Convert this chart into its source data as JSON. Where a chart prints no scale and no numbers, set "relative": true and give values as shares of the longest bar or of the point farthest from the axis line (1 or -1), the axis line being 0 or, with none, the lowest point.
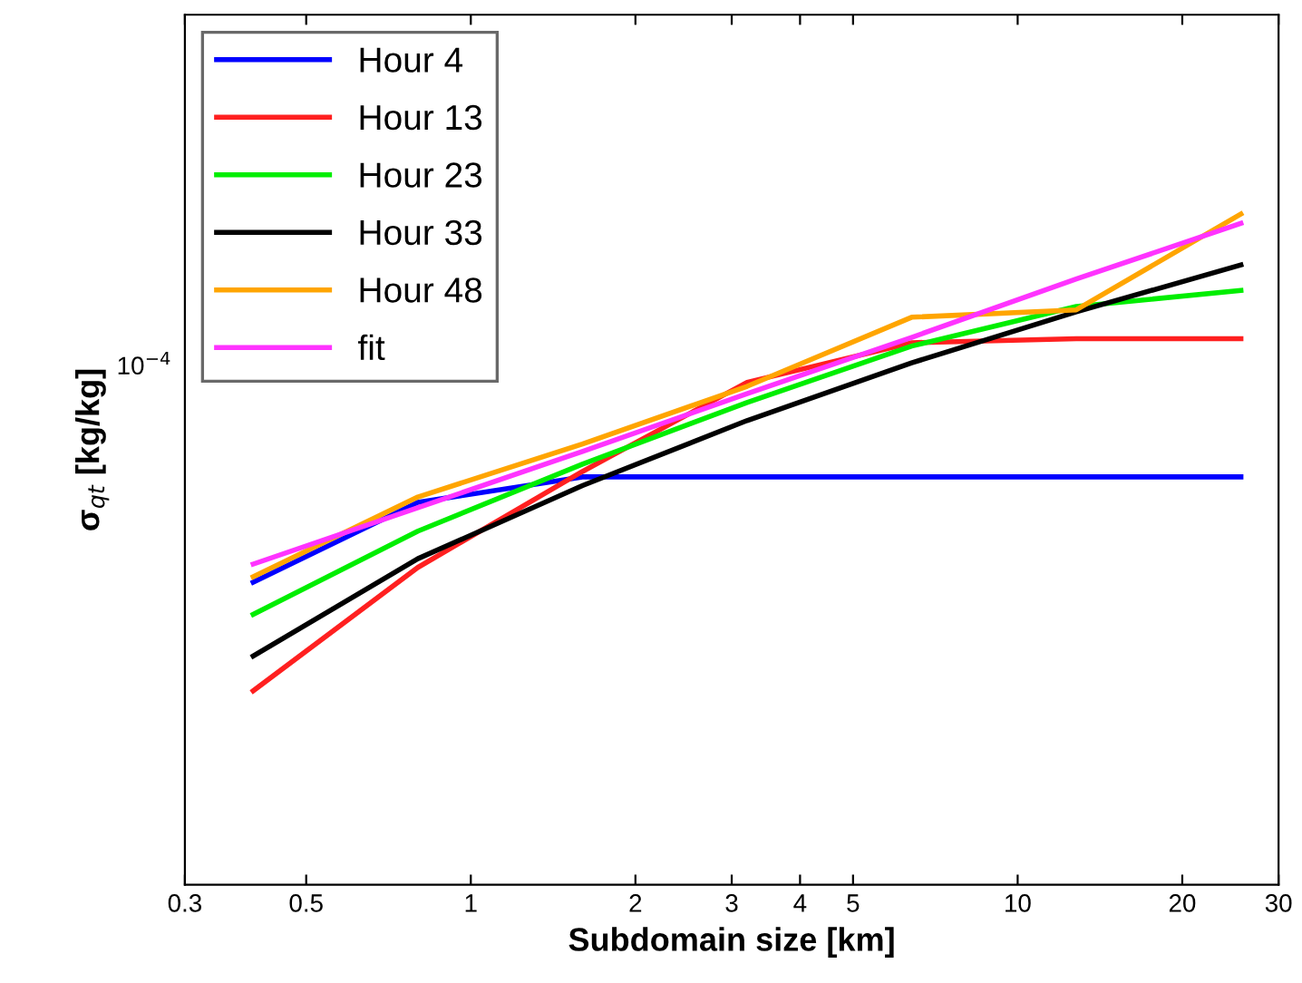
{
  "chart_data": {
    "type": "line",
    "xlabel": "Subdomain size [km]",
    "ylabel": "σ$_{qt}$ [kg/kg]",
    "annotations": [
      "10$^{−4}$"
    ],
    "relative": true,
    "x": [
      0.4,
      0.8,
      1.6,
      3.2,
      6.4,
      12.8,
      25.6
    ],
    "series": [
      {
        "name": "Hour 4",
        "color": "#0000ff",
        "values": [
          0.451,
          0.57,
          0.608,
          0.608,
          0.608,
          0.608,
          0.608
        ]
      },
      {
        "name": "Hour 13",
        "color": "#ff2020",
        "values": [
          0.289,
          0.473,
          0.616,
          0.749,
          0.808,
          0.814,
          0.814
        ]
      },
      {
        "name": "Hour 23",
        "color": "#00ee00",
        "values": [
          0.403,
          0.527,
          0.627,
          0.719,
          0.803,
          0.862,
          0.886
        ]
      },
      {
        "name": "Hour 33",
        "color": "#000000",
        "values": [
          0.341,
          0.486,
          0.595,
          0.692,
          0.778,
          0.854,
          0.924
        ]
      },
      {
        "name": "Hour 48",
        "color": "#ffa500",
        "values": [
          0.459,
          0.578,
          0.657,
          0.743,
          0.846,
          0.857,
          1.0
        ]
      },
      {
        "name": "fit",
        "color": "#ff33ff",
        "values": [
          0.478,
          0.562,
          0.646,
          0.732,
          0.816,
          0.903,
          0.986
        ]
      }
    ],
    "log": "x",
    "xlim": [
      0.3,
      30
    ],
    "xticks": [
      0.3,
      0.5,
      1,
      2,
      3,
      4,
      5,
      10,
      20,
      30
    ],
    "grid": false,
    "legend": "top left",
    "line_style": "solid",
    "marker": "none"
  }
}
